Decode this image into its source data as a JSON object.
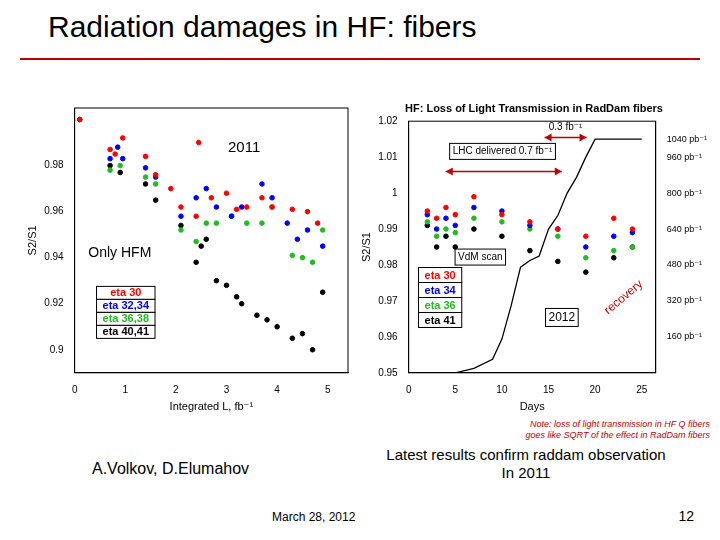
{
  "slide": {
    "title": "Radiation damages in HF: fibers",
    "authors": "A.Volkov, D.Elumahov",
    "caption": [
      "Latest results confirm raddam observation",
      "In 2011"
    ],
    "date": "March 28, 2012",
    "page": 12
  },
  "chart_data": [
    {
      "type": "scatter",
      "x_label": "Integrated L, fb⁻¹",
      "y_label": "S2/S1",
      "xlim": [
        0,
        5.4
      ],
      "xticks": [
        0,
        1,
        2,
        3,
        4,
        5
      ],
      "ylim": [
        0.89,
        1.005
      ],
      "yticks": [
        0.9,
        0.92,
        0.94,
        0.96,
        0.98
      ],
      "grid": false,
      "legend": "lower left",
      "annotations": [
        "2011",
        "Only HFM"
      ],
      "series": [
        {
          "name": "eta 30",
          "color": "#ff0000",
          "marker": "circle",
          "x": [
            0.1,
            0.7,
            0.8,
            0.95,
            1.4,
            1.6,
            1.9,
            2.1,
            2.4,
            2.45,
            2.7,
            3.0,
            3.2,
            3.4,
            3.7,
            3.9,
            4.3,
            4.6,
            4.8
          ],
          "values": [
            1.0,
            0.987,
            0.985,
            0.992,
            0.984,
            0.976,
            0.97,
            0.962,
            0.958,
            0.99,
            0.966,
            0.968,
            0.961,
            0.962,
            0.966,
            0.962,
            0.961,
            0.96,
            0.955
          ]
        },
        {
          "name": "eta 32,34",
          "color": "#0000ff",
          "marker": "circle",
          "x": [
            0.7,
            0.85,
            0.95,
            1.4,
            1.6,
            2.1,
            2.4,
            2.6,
            2.8,
            3.1,
            3.3,
            3.7,
            3.9,
            4.2,
            4.4,
            4.6,
            4.9
          ],
          "values": [
            0.983,
            0.988,
            0.983,
            0.979,
            0.975,
            0.958,
            0.966,
            0.97,
            0.962,
            0.958,
            0.962,
            0.972,
            0.966,
            0.955,
            0.948,
            0.952,
            0.945
          ]
        },
        {
          "name": "eta 36,38",
          "color": "#22bb22",
          "marker": "circle",
          "x": [
            0.7,
            0.9,
            1.4,
            1.6,
            2.1,
            2.4,
            2.6,
            2.8,
            3.1,
            3.4,
            3.7,
            3.9,
            4.3,
            4.5,
            4.7,
            4.9
          ],
          "values": [
            0.978,
            0.98,
            0.975,
            0.972,
            0.952,
            0.947,
            0.955,
            0.955,
            0.958,
            0.955,
            0.955,
            0.962,
            0.941,
            0.94,
            0.938,
            0.952
          ]
        },
        {
          "name": "eta 40,41",
          "color": "#000000",
          "marker": "circle",
          "x": [
            0.1,
            0.7,
            0.9,
            1.4,
            1.6,
            2.1,
            2.4,
            2.5,
            2.6,
            2.8,
            3.0,
            3.2,
            3.3,
            3.6,
            3.8,
            4.0,
            4.3,
            4.5,
            4.7,
            4.9
          ],
          "values": [
            1.0,
            0.98,
            0.977,
            0.972,
            0.965,
            0.954,
            0.938,
            0.945,
            0.948,
            0.93,
            0.928,
            0.923,
            0.92,
            0.915,
            0.913,
            0.91,
            0.905,
            0.907,
            0.9,
            0.925
          ]
        }
      ]
    },
    {
      "type": "scatter",
      "title": "HF: Loss of Light Transmission in RadDam fibers",
      "x_label": "Days",
      "y_label": "S2/S1",
      "xlim": [
        0,
        26.5
      ],
      "xticks": [
        0,
        5,
        10,
        15,
        20,
        25
      ],
      "ylim": [
        0.95,
        1.02
      ],
      "yticks": [
        0.95,
        0.96,
        0.97,
        0.98,
        0.99,
        1,
        1.01,
        1.02
      ],
      "y2lim": [
        0,
        1120
      ],
      "y2ticks": [
        {
          "value": 160,
          "label": "160 pb⁻¹"
        },
        {
          "value": 320,
          "label": "320 pb⁻¹"
        },
        {
          "value": 480,
          "label": "480 pb⁻¹"
        },
        {
          "value": 640,
          "label": "640 pb⁻¹"
        },
        {
          "value": 800,
          "label": "800 pb⁻¹"
        },
        {
          "value": 960,
          "label": "960 pb⁻¹"
        },
        {
          "value": 1040,
          "label": "1040 pb⁻¹"
        }
      ],
      "grid": false,
      "legend": "lower left",
      "annotations": [
        "LHC delivered 0.7 fb⁻¹",
        "0.3 fb⁻¹",
        "VdM scan",
        "recovery",
        "2012"
      ],
      "note": [
        "Note: loss of light transmission in HF Q fibers",
        "goes like SQRT of the effect in RadDam fibers"
      ],
      "series": [
        {
          "name": "eta 30",
          "color": "#ff0000",
          "marker": "circle",
          "x": [
            2,
            3,
            4,
            5,
            7,
            10,
            13,
            16,
            19,
            22,
            24
          ],
          "values": [
            0.995,
            0.993,
            0.996,
            0.994,
            0.999,
            0.994,
            0.992,
            0.99,
            0.988,
            0.993,
            0.99
          ]
        },
        {
          "name": "eta 34",
          "color": "#0000ff",
          "marker": "circle",
          "x": [
            2,
            3,
            4,
            5,
            7,
            10,
            13,
            16,
            19,
            22,
            24
          ],
          "values": [
            0.994,
            0.99,
            0.993,
            0.991,
            0.996,
            0.995,
            0.991,
            0.99,
            0.985,
            0.988,
            0.989
          ]
        },
        {
          "name": "eta 36",
          "color": "#22bb22",
          "marker": "circle",
          "x": [
            2,
            3,
            4,
            5,
            7,
            10,
            13,
            16,
            19,
            22,
            24
          ],
          "values": [
            0.992,
            0.988,
            0.99,
            0.989,
            0.993,
            0.992,
            0.99,
            0.988,
            0.982,
            0.984,
            0.985
          ]
        },
        {
          "name": "eta 41",
          "color": "#000000",
          "marker": "circle",
          "x": [
            2,
            3,
            4,
            5,
            7,
            10,
            13,
            16,
            19,
            22,
            24
          ],
          "values": [
            0.991,
            0.985,
            0.988,
            0.985,
            0.99,
            0.988,
            0.984,
            0.981,
            0.978,
            0.982,
            0.985
          ]
        },
        {
          "type": "line",
          "color": "#000000",
          "line_style": "solid",
          "axis": "y2",
          "x": [
            0,
            5,
            7,
            9,
            10,
            11,
            12,
            13,
            14,
            15,
            16,
            17,
            18,
            19,
            20,
            25
          ],
          "values": [
            0,
            0,
            20,
            60,
            150,
            300,
            470,
            500,
            520,
            640,
            700,
            800,
            870,
            960,
            1040,
            1040
          ]
        }
      ]
    }
  ]
}
